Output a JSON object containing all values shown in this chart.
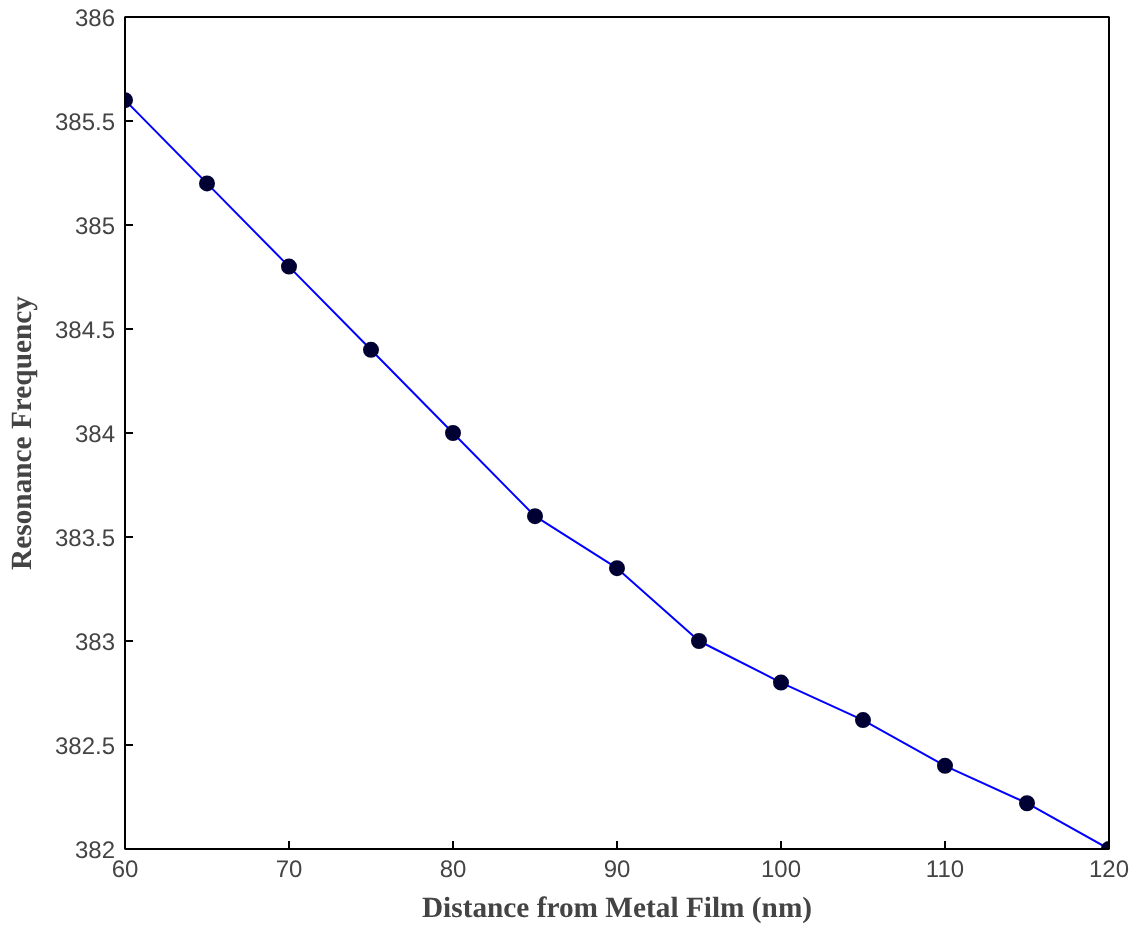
{
  "chart_data": {
    "type": "line",
    "xlabel": "Distance from Metal Film (nm)",
    "ylabel": "Resonance Frequency",
    "x": [
      60,
      65,
      70,
      75,
      80,
      85,
      90,
      95,
      100,
      105,
      110,
      115,
      120
    ],
    "series": [
      {
        "color": "#0000ff",
        "values": [
          385.6,
          385.2,
          384.8,
          384.4,
          384.0,
          383.6,
          383.35,
          383.0,
          382.8,
          382.62,
          382.4,
          382.22,
          382.0
        ]
      }
    ],
    "xlim": [
      60,
      120
    ],
    "ylim": [
      382,
      386
    ],
    "xticks": [
      60,
      70,
      80,
      90,
      100,
      110,
      120
    ],
    "yticks": [
      382,
      382.5,
      383,
      383.5,
      384,
      384.5,
      385,
      385.5,
      386
    ],
    "marker": "circle",
    "line_style": "solid",
    "grid": false
  }
}
